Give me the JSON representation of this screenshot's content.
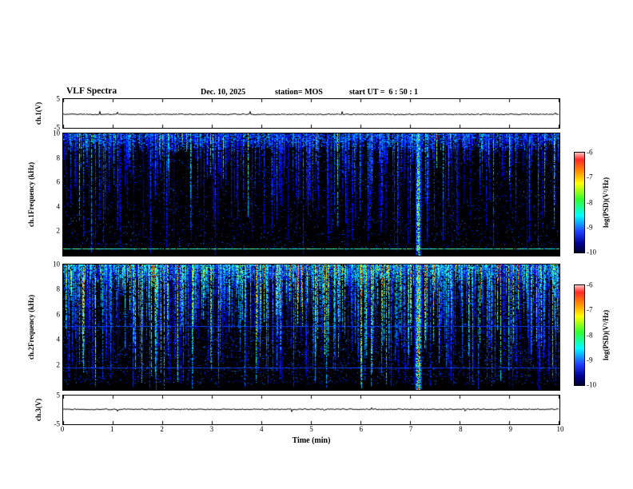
{
  "header": {
    "title": "VLF Spectra",
    "date": "Dec. 10, 2025",
    "station": "station= MOS",
    "start_ut": "start UT =  6 : 50 : 1"
  },
  "chart_data": [
    {
      "id": "ch1_waveform",
      "type": "line",
      "ylabel": "ch.1(V)",
      "ylim": [
        -5,
        5
      ],
      "yticks": [
        5,
        -5
      ],
      "xlim": [
        0,
        10
      ],
      "description": "Channel 1 voltage time series; nearly flat trace at ~0 V with tiny impulsive spikes"
    },
    {
      "id": "ch1_spectrogram",
      "type": "heatmap",
      "ylabel_line1": "ch.1",
      "ylabel_line2": "Frequency (kHz)",
      "ylim": [
        0,
        10
      ],
      "yticks": [
        10,
        8,
        6,
        4,
        2
      ],
      "xlim": [
        0,
        10
      ],
      "colorbar_label": "log(PSD)(V²/Hz)",
      "colorbar_ticks": [
        -6,
        -7,
        -8,
        -9,
        -10
      ],
      "colorbar_lim": [
        -6,
        -10
      ],
      "event_time_min": 7.15,
      "horizontal_lines_khz": [
        0.6
      ],
      "description": "VLF power spectral density vs time; mostly dark blue impulsive sferic streaks descending from 10 kHz, dense speckle band near 8-10 kHz, strong broadband green/yellow event near 7.15 min, persistent narrow cyan line near 0.6 kHz"
    },
    {
      "id": "ch2_spectrogram",
      "type": "heatmap",
      "ylabel_line1": "ch.2",
      "ylabel_line2": "Frequency (kHz)",
      "ylim": [
        0,
        10
      ],
      "yticks": [
        10,
        8,
        6,
        4,
        2
      ],
      "xlim": [
        0,
        10
      ],
      "colorbar_label": "log(PSD)(V²/Hz)",
      "colorbar_ticks": [
        -6,
        -7,
        -8,
        -9,
        -10
      ],
      "colorbar_lim": [
        -6,
        -10
      ],
      "event_time_min": 7.15,
      "horizontal_lines_khz": [
        5.1,
        1.8
      ],
      "description": "Channel 2 spectrogram, brighter than ch.1 with dense cyan/green streaks reaching low frequencies, intense red-core broadband event near 7.15 min, faint horizontal blue lines near 5.1 and 1.8 kHz"
    },
    {
      "id": "ch3_waveform",
      "type": "line",
      "ylabel": "ch.3(V)",
      "ylim": [
        -5,
        5
      ],
      "yticks": [
        5,
        -5
      ],
      "xlim": [
        0,
        10
      ],
      "description": "Channel 3 voltage time series; nearly flat trace at ~0 V"
    },
    {
      "id": "time_axis",
      "type": "axis",
      "xlabel": "Time (min)",
      "xticks": [
        0,
        1,
        2,
        3,
        4,
        5,
        6,
        7,
        8,
        9,
        10
      ],
      "xlim": [
        0,
        10
      ]
    }
  ]
}
